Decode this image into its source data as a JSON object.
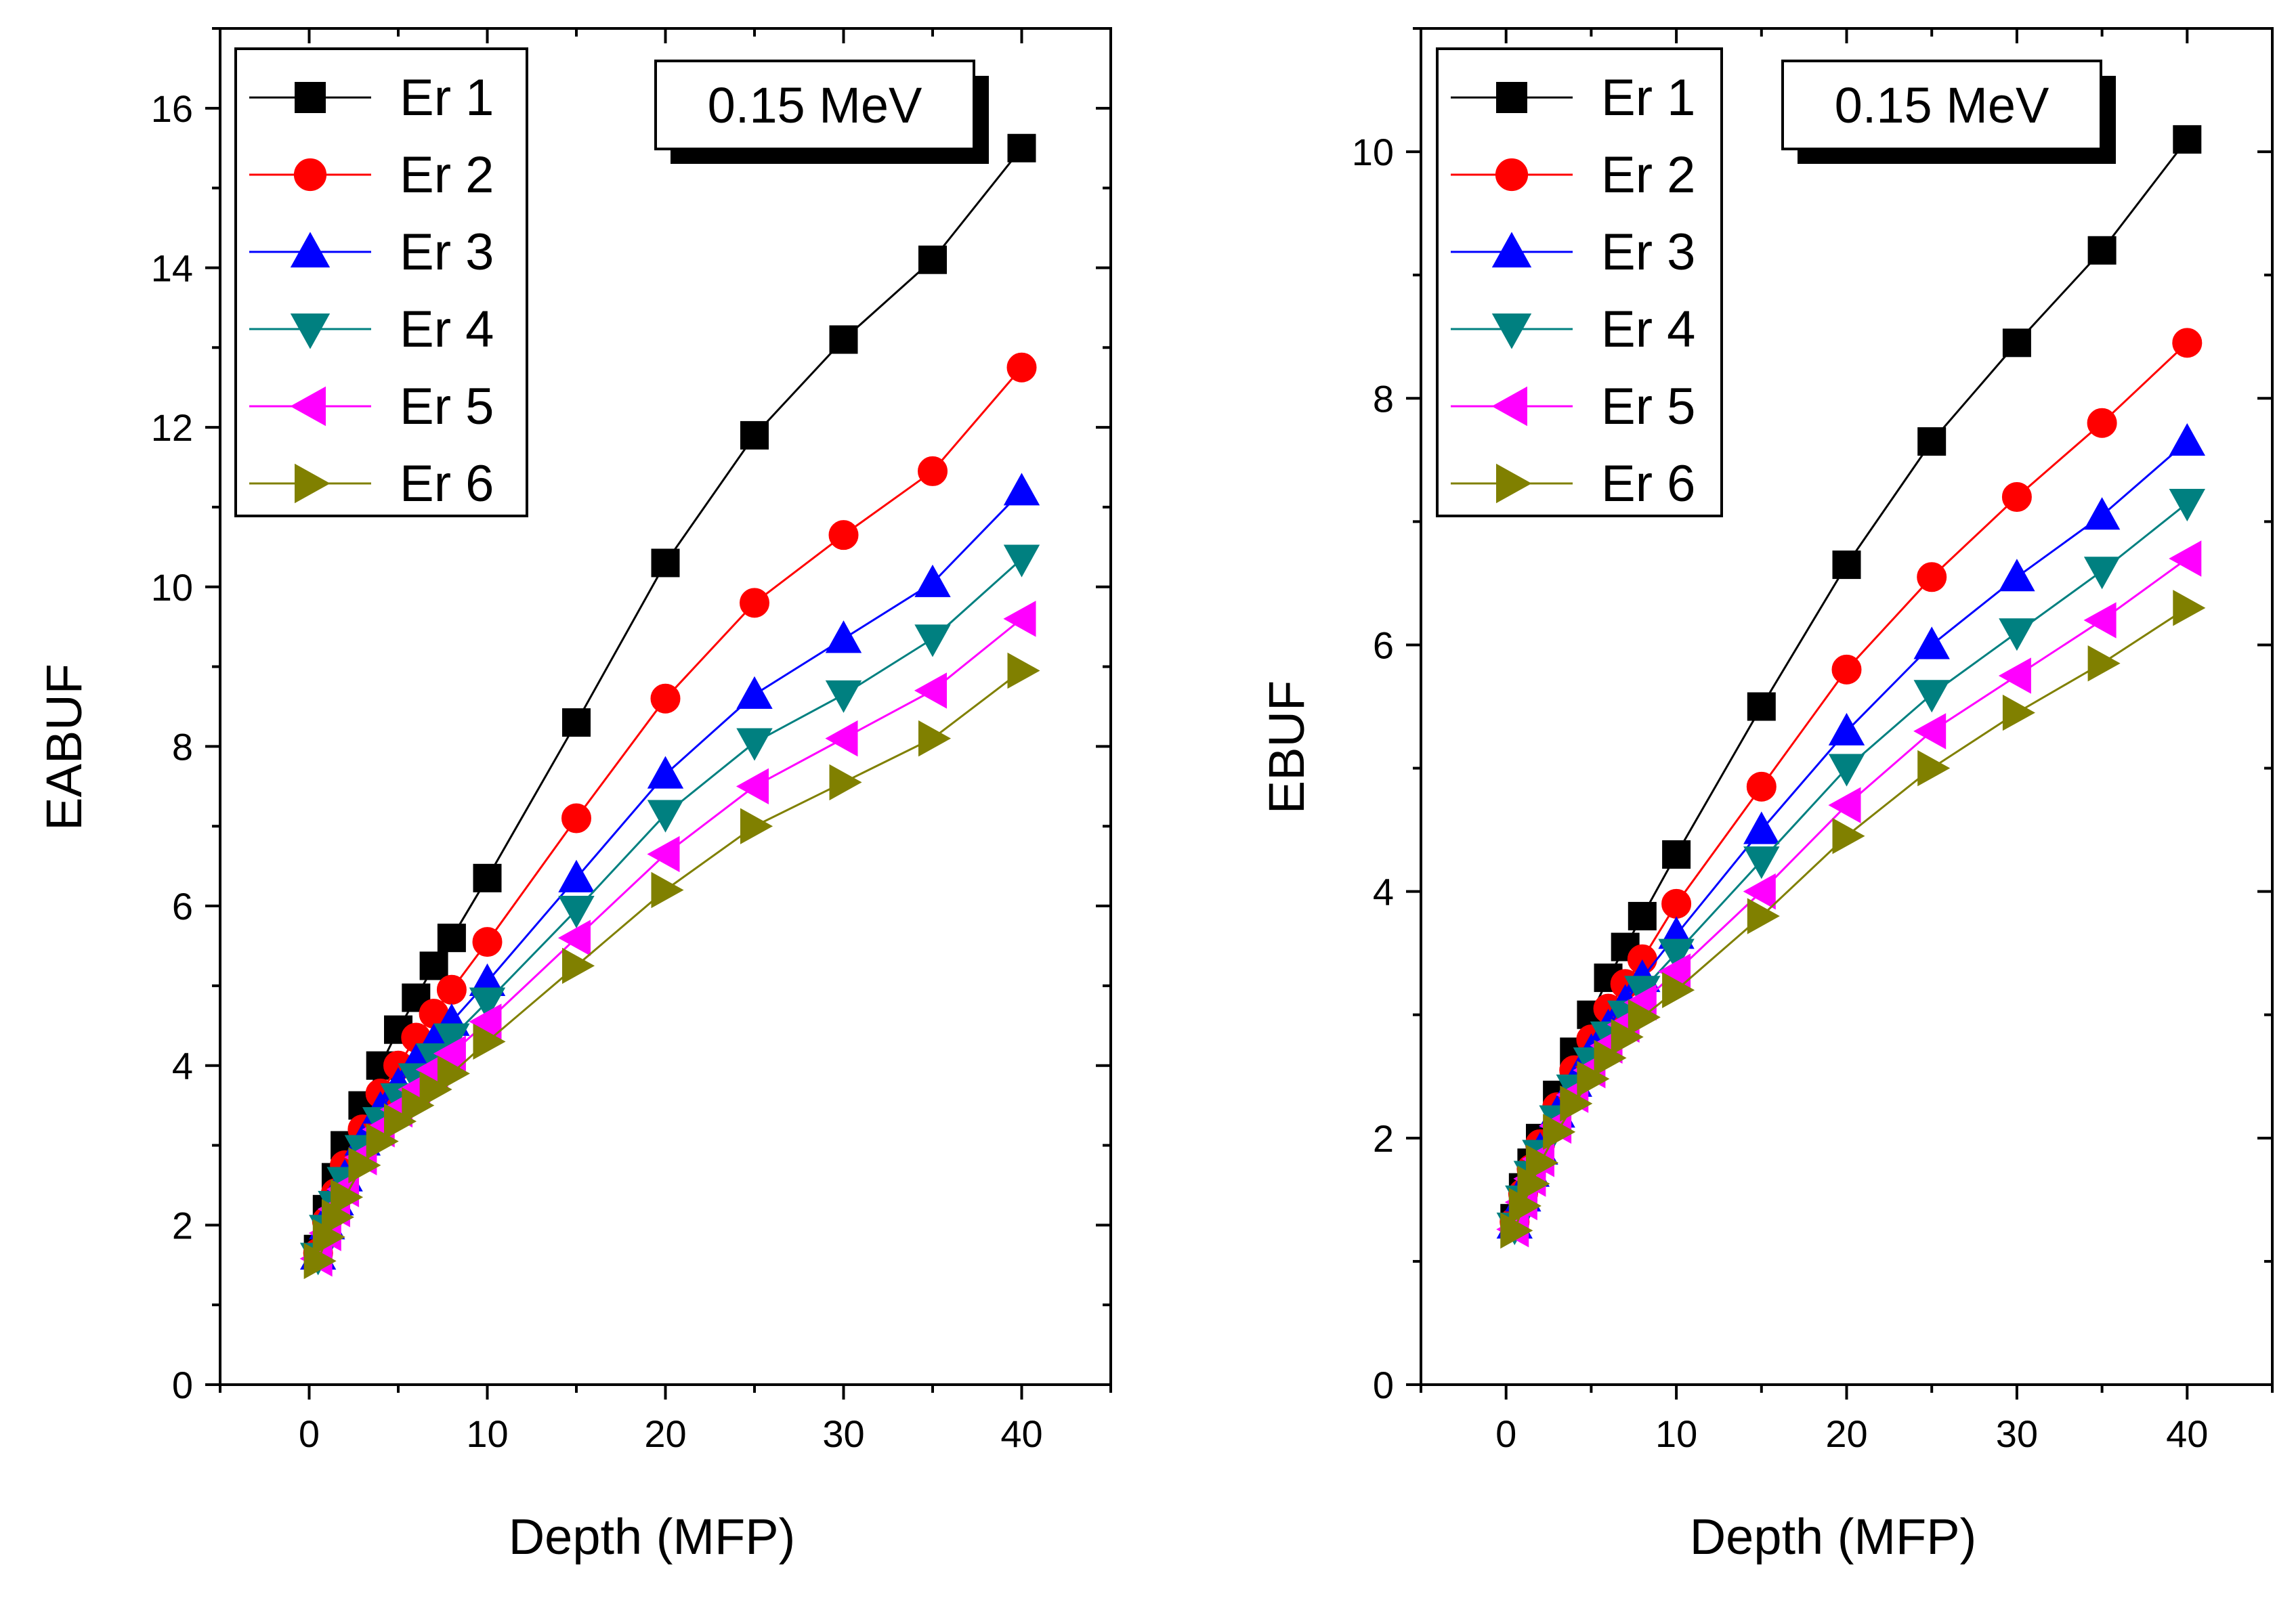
{
  "chart_data": [
    {
      "type": "line",
      "title": "",
      "xlabel": "Depth (MFP)",
      "ylabel": "EABUF",
      "annotation": "0.15 MeV",
      "xlim": [
        -5,
        45
      ],
      "ylim": [
        0,
        17
      ],
      "xticks": [
        0,
        10,
        20,
        30,
        40
      ],
      "yticks": [
        0,
        2,
        4,
        6,
        8,
        10,
        12,
        14,
        16
      ],
      "grid": false,
      "legend_position": "top-left",
      "x": [
        0.5,
        1,
        1.5,
        2,
        3,
        4,
        5,
        6,
        7,
        8,
        10,
        15,
        20,
        25,
        30,
        35,
        40
      ],
      "series": [
        {
          "name": "Er 1",
          "color": "#000000",
          "marker": "square",
          "values": [
            1.7,
            2.2,
            2.6,
            3.0,
            3.5,
            4.0,
            4.45,
            4.85,
            5.25,
            5.6,
            6.35,
            8.3,
            10.3,
            11.9,
            13.1,
            14.1,
            15.5
          ]
        },
        {
          "name": "Er 2",
          "color": "#ff0000",
          "marker": "circle",
          "values": [
            1.65,
            2.05,
            2.4,
            2.75,
            3.2,
            3.65,
            4.0,
            4.35,
            4.65,
            4.95,
            5.55,
            7.1,
            8.6,
            9.8,
            10.65,
            11.45,
            12.75
          ]
        },
        {
          "name": "Er 3",
          "color": "#0000ff",
          "marker": "triangle-up",
          "values": [
            1.62,
            2.0,
            2.3,
            2.6,
            3.05,
            3.45,
            3.75,
            4.05,
            4.3,
            4.55,
            5.05,
            6.35,
            7.65,
            8.65,
            9.35,
            10.05,
            11.2
          ]
        },
        {
          "name": "Er 4",
          "color": "#008080",
          "marker": "triangle-down",
          "values": [
            1.6,
            1.95,
            2.25,
            2.55,
            2.95,
            3.3,
            3.6,
            3.85,
            4.1,
            4.35,
            4.8,
            5.95,
            7.15,
            8.05,
            8.65,
            9.35,
            10.35
          ]
        },
        {
          "name": "Er 5",
          "color": "#ff00ff",
          "marker": "triangle-left",
          "values": [
            1.58,
            1.9,
            2.2,
            2.45,
            2.85,
            3.2,
            3.45,
            3.7,
            3.95,
            4.15,
            4.55,
            5.6,
            6.65,
            7.5,
            8.1,
            8.7,
            9.6
          ]
        },
        {
          "name": "Er 6",
          "color": "#808000",
          "marker": "triangle-right",
          "values": [
            1.55,
            1.85,
            2.1,
            2.35,
            2.75,
            3.05,
            3.3,
            3.5,
            3.7,
            3.9,
            4.3,
            5.25,
            6.2,
            7.0,
            7.55,
            8.1,
            8.95
          ]
        }
      ]
    },
    {
      "type": "line",
      "title": "",
      "xlabel": "Depth (MFP)",
      "ylabel": "EBUF",
      "annotation": "0.15 MeV",
      "xlim": [
        -5,
        45
      ],
      "ylim": [
        0,
        11
      ],
      "xticks": [
        0,
        10,
        20,
        30,
        40
      ],
      "yticks": [
        0,
        2,
        4,
        6,
        8,
        10
      ],
      "grid": false,
      "legend_position": "top-left",
      "x": [
        0.5,
        1,
        1.5,
        2,
        3,
        4,
        5,
        6,
        7,
        8,
        10,
        15,
        20,
        25,
        30,
        35,
        40
      ],
      "series": [
        {
          "name": "Er 1",
          "color": "#000000",
          "marker": "square",
          "values": [
            1.35,
            1.6,
            1.8,
            2.0,
            2.35,
            2.7,
            3.0,
            3.3,
            3.55,
            3.8,
            4.3,
            5.5,
            6.65,
            7.65,
            8.45,
            9.2,
            10.1
          ]
        },
        {
          "name": "Er 2",
          "color": "#ff0000",
          "marker": "circle",
          "values": [
            1.32,
            1.55,
            1.75,
            1.95,
            2.25,
            2.55,
            2.8,
            3.05,
            3.25,
            3.45,
            3.9,
            4.85,
            5.8,
            6.55,
            7.2,
            7.8,
            8.45
          ]
        },
        {
          "name": "Er 3",
          "color": "#0000ff",
          "marker": "triangle-up",
          "values": [
            1.3,
            1.52,
            1.72,
            1.9,
            2.2,
            2.45,
            2.7,
            2.9,
            3.1,
            3.3,
            3.65,
            4.5,
            5.3,
            6.0,
            6.55,
            7.05,
            7.65
          ]
        },
        {
          "name": "Er 4",
          "color": "#008080",
          "marker": "triangle-down",
          "values": [
            1.28,
            1.5,
            1.7,
            1.87,
            2.15,
            2.4,
            2.62,
            2.83,
            3.0,
            3.2,
            3.5,
            4.25,
            5.0,
            5.6,
            6.1,
            6.6,
            7.15
          ]
        },
        {
          "name": "Er 5",
          "color": "#ff00ff",
          "marker": "triangle-left",
          "values": [
            1.26,
            1.48,
            1.67,
            1.83,
            2.1,
            2.35,
            2.55,
            2.75,
            2.92,
            3.1,
            3.35,
            4.0,
            4.7,
            5.3,
            5.75,
            6.2,
            6.7
          ]
        },
        {
          "name": "Er 6",
          "color": "#808000",
          "marker": "triangle-right",
          "values": [
            1.25,
            1.45,
            1.63,
            1.8,
            2.05,
            2.28,
            2.48,
            2.65,
            2.82,
            2.98,
            3.2,
            3.8,
            4.45,
            5.0,
            5.45,
            5.85,
            6.3
          ]
        }
      ]
    }
  ]
}
